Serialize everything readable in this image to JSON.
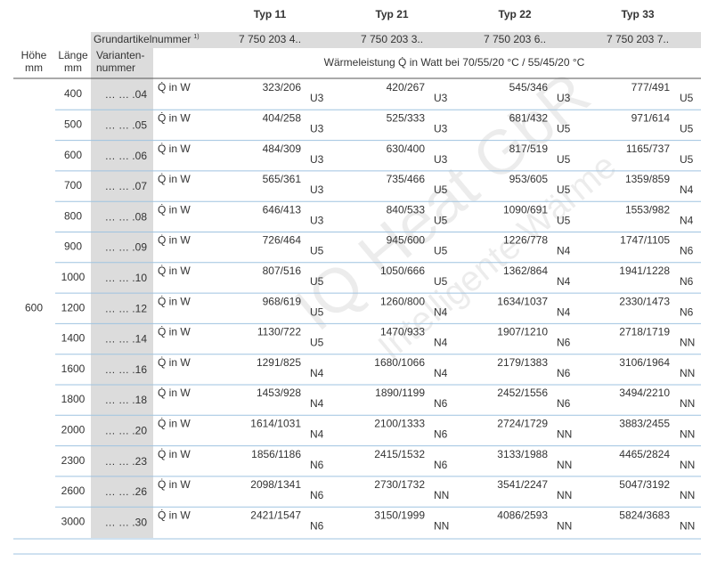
{
  "header": {
    "types": [
      "Typ 11",
      "Typ 21",
      "Typ 22",
      "Typ 33"
    ],
    "article_label": "Grundartikelnummer",
    "article_footnote": "1)",
    "article_numbers": [
      "7 750 203 4..",
      "7 750 203 3..",
      "7 750 203 6..",
      "7 750 203 7.."
    ],
    "height_label": [
      "Höhe",
      "mm"
    ],
    "length_label": [
      "Länge",
      "mm"
    ],
    "variant_label": [
      "Varianten-",
      "nummer"
    ],
    "power_label": "Wärmeleistung Q̇ in Watt bei 70/55/20 °C / 55/45/20 °C"
  },
  "watermark": [
    "IQ Heat GbR",
    "Intelligente Wärme"
  ],
  "table": {
    "height": "600",
    "rows": [
      {
        "length": "400",
        "variant": "… … .04",
        "unit": "Q̇ in W",
        "cells": [
          [
            "323/206",
            "U3"
          ],
          [
            "420/267",
            "U3"
          ],
          [
            "545/346",
            "U3"
          ],
          [
            "777/491",
            "U5"
          ]
        ]
      },
      {
        "length": "500",
        "variant": "… … .05",
        "unit": "Q̇ in W",
        "cells": [
          [
            "404/258",
            "U3"
          ],
          [
            "525/333",
            "U3"
          ],
          [
            "681/432",
            "U5"
          ],
          [
            "971/614",
            "U5"
          ]
        ]
      },
      {
        "length": "600",
        "variant": "… … .06",
        "unit": "Q̇ in W",
        "cells": [
          [
            "484/309",
            "U3"
          ],
          [
            "630/400",
            "U3"
          ],
          [
            "817/519",
            "U5"
          ],
          [
            "1165/737",
            "U5"
          ]
        ]
      },
      {
        "length": "700",
        "variant": "… … .07",
        "unit": "Q̇ in W",
        "cells": [
          [
            "565/361",
            "U3"
          ],
          [
            "735/466",
            "U5"
          ],
          [
            "953/605",
            "U5"
          ],
          [
            "1359/859",
            "N4"
          ]
        ]
      },
      {
        "length": "800",
        "variant": "… … .08",
        "unit": "Q̇ in W",
        "cells": [
          [
            "646/413",
            "U3"
          ],
          [
            "840/533",
            "U5"
          ],
          [
            "1090/691",
            "U5"
          ],
          [
            "1553/982",
            "N4"
          ]
        ]
      },
      {
        "length": "900",
        "variant": "… … .09",
        "unit": "Q̇ in W",
        "cells": [
          [
            "726/464",
            "U5"
          ],
          [
            "945/600",
            "U5"
          ],
          [
            "1226/778",
            "N4"
          ],
          [
            "1747/1105",
            "N6"
          ]
        ]
      },
      {
        "length": "1000",
        "variant": "… … .10",
        "unit": "Q̇ in W",
        "cells": [
          [
            "807/516",
            "U5"
          ],
          [
            "1050/666",
            "U5"
          ],
          [
            "1362/864",
            "N4"
          ],
          [
            "1941/1228",
            "N6"
          ]
        ]
      },
      {
        "length": "1200",
        "variant": "… … .12",
        "unit": "Q̇ in W",
        "cells": [
          [
            "968/619",
            "U5"
          ],
          [
            "1260/800",
            "N4"
          ],
          [
            "1634/1037",
            "N4"
          ],
          [
            "2330/1473",
            "N6"
          ]
        ]
      },
      {
        "length": "1400",
        "variant": "… … .14",
        "unit": "Q̇ in W",
        "cells": [
          [
            "1130/722",
            "U5"
          ],
          [
            "1470/933",
            "N4"
          ],
          [
            "1907/1210",
            "N6"
          ],
          [
            "2718/1719",
            "NN"
          ]
        ]
      },
      {
        "length": "1600",
        "variant": "… … .16",
        "unit": "Q̇ in W",
        "cells": [
          [
            "1291/825",
            "N4"
          ],
          [
            "1680/1066",
            "N4"
          ],
          [
            "2179/1383",
            "N6"
          ],
          [
            "3106/1964",
            "NN"
          ]
        ]
      },
      {
        "length": "1800",
        "variant": "… … .18",
        "unit": "Q̇ in W",
        "cells": [
          [
            "1453/928",
            "N4"
          ],
          [
            "1890/1199",
            "N6"
          ],
          [
            "2452/1556",
            "N6"
          ],
          [
            "3494/2210",
            "NN"
          ]
        ]
      },
      {
        "length": "2000",
        "variant": "… … .20",
        "unit": "Q̇ in W",
        "cells": [
          [
            "1614/1031",
            "N4"
          ],
          [
            "2100/1333",
            "N6"
          ],
          [
            "2724/1729",
            "NN"
          ],
          [
            "3883/2455",
            "NN"
          ]
        ]
      },
      {
        "length": "2300",
        "variant": "… … .23",
        "unit": "Q̇ in W",
        "cells": [
          [
            "1856/1186",
            "N6"
          ],
          [
            "2415/1532",
            "N6"
          ],
          [
            "3133/1988",
            "NN"
          ],
          [
            "4465/2824",
            "NN"
          ]
        ]
      },
      {
        "length": "2600",
        "variant": "… … .26",
        "unit": "Q̇ in W",
        "cells": [
          [
            "2098/1341",
            "N6"
          ],
          [
            "2730/1732",
            "NN"
          ],
          [
            "3541/2247",
            "NN"
          ],
          [
            "5047/3192",
            "NN"
          ]
        ]
      },
      {
        "length": "3000",
        "variant": "… … .30",
        "unit": "Q̇ in W",
        "cells": [
          [
            "2421/1547",
            "N6"
          ],
          [
            "3150/1999",
            "NN"
          ],
          [
            "4086/2593",
            "NN"
          ],
          [
            "5824/3683",
            "NN"
          ]
        ]
      }
    ]
  }
}
